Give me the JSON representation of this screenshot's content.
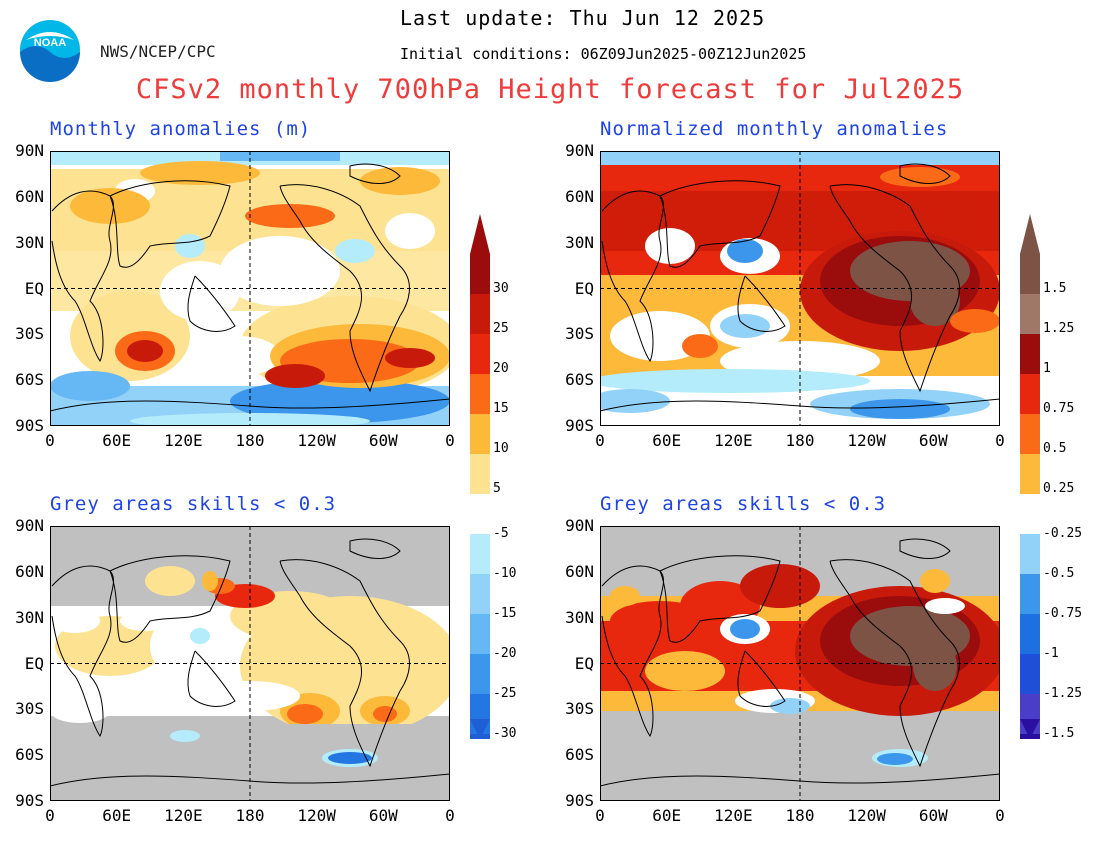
{
  "header": {
    "logo_text": "NOAA",
    "org": "NWS/NCEP/CPC",
    "last_update": "Last update: Thu Jun 12 2025",
    "initial_conditions": "Initial conditions: 06Z09Jun2025-00Z12Jun2025",
    "title": "CFSv2 monthly 700hPa Height forecast for Jul2025"
  },
  "panels": {
    "top_left": {
      "title": "Monthly anomalies (m)"
    },
    "top_right": {
      "title": "Normalized monthly anomalies"
    },
    "bottom_left": {
      "title": "Grey areas skills < 0.3"
    },
    "bottom_right": {
      "title": "Grey areas skills < 0.3"
    }
  },
  "axes": {
    "lat_labels": [
      "90N",
      "60N",
      "30N",
      "EQ",
      "30S",
      "60S",
      "90S"
    ],
    "lon_labels": [
      "0",
      "60E",
      "120E",
      "180",
      "120W",
      "60W",
      "0"
    ]
  },
  "colorbars": {
    "left": {
      "positive_labels": [
        "30",
        "25",
        "20",
        "15",
        "10",
        "5"
      ],
      "negative_labels": [
        "-5",
        "-10",
        "-15",
        "-20",
        "-25",
        "-30"
      ]
    },
    "right": {
      "positive_labels": [
        "1.5",
        "1.25",
        "1",
        "0.75",
        "0.5",
        "0.25"
      ],
      "negative_labels": [
        "-0.25",
        "-0.5",
        "-0.75",
        "-1",
        "-1.25",
        "-1.5"
      ]
    }
  },
  "colors": {
    "warm": [
      "#fde391",
      "#fdb93a",
      "#fb6a16",
      "#e8280e",
      "#c81a0a",
      "#9b0d0d"
    ],
    "warm_norm_top": "#7d5346",
    "warm_norm_top2": "#a07868",
    "cool": [
      "#b4ecfb",
      "#93d2f8",
      "#65b8f4",
      "#3c97ec",
      "#2477e2",
      "#1e5fd6"
    ],
    "cool_norm": [
      "#93d2f8",
      "#3c97ec",
      "#1e6fe0",
      "#1f4fd8",
      "#4a3dc8",
      "#2a10a0"
    ],
    "title_red": "#ee3b3b",
    "panel_title_blue": "#1f44e6",
    "grey_mask": "#c0c0c0"
  }
}
